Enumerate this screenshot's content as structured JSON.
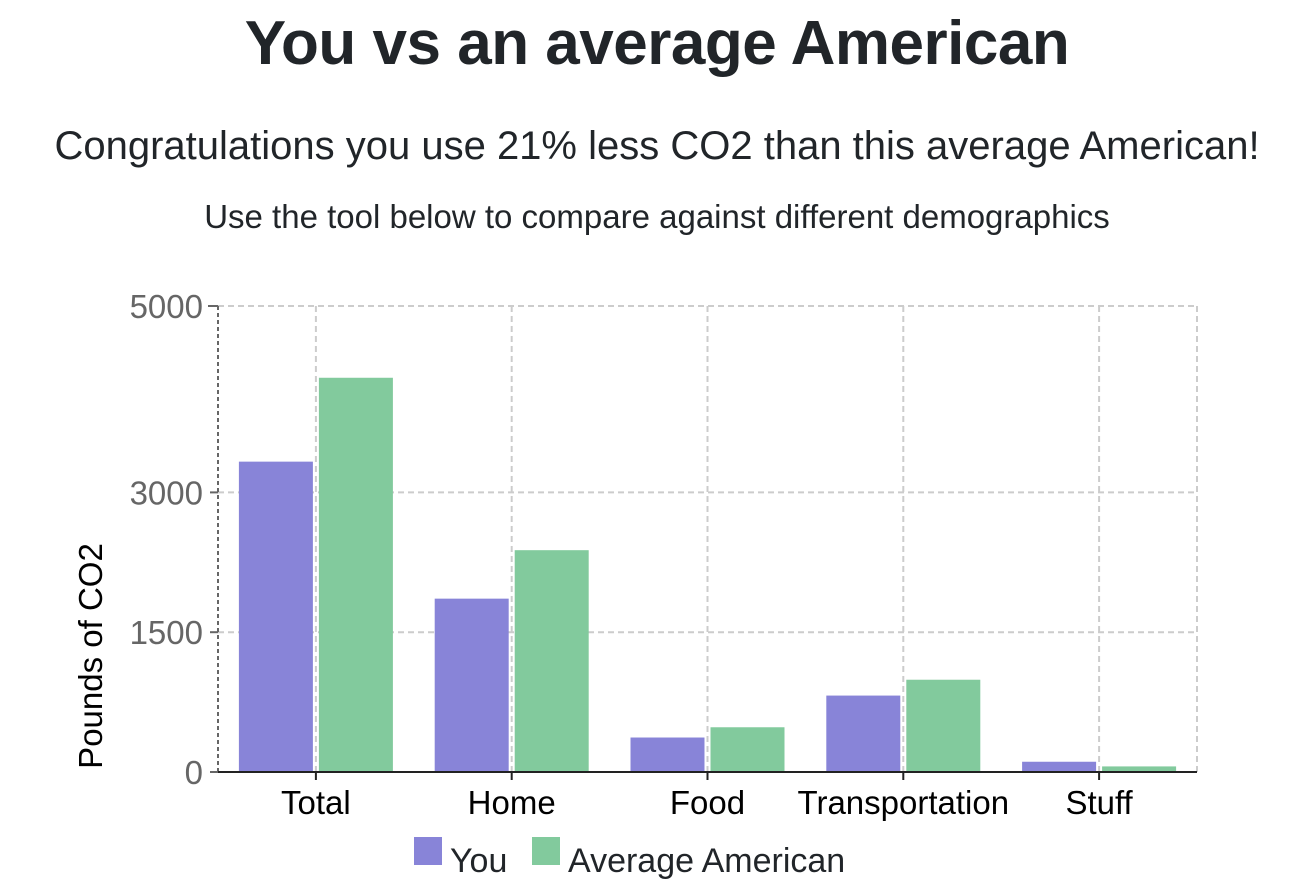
{
  "header": {
    "title": "You vs an average American",
    "message": "Congratulations you use 21% less CO2 than this average American!",
    "instruction": "Use the tool below to compare against different demographics"
  },
  "chart_data": {
    "type": "bar",
    "categories": [
      "Total",
      "Home",
      "Food",
      "Transportation",
      "Stuff"
    ],
    "series": [
      {
        "name": "You",
        "color": "#8884d8",
        "values": [
          3330,
          1860,
          370,
          820,
          110
        ]
      },
      {
        "name": "Average American",
        "color": "#82ca9d",
        "values": [
          4230,
          2380,
          480,
          990,
          60
        ]
      }
    ],
    "ylabel": "Pounds of CO2",
    "yticks": [
      0,
      1500,
      3000,
      5000
    ],
    "ylim": [
      0,
      5000
    ],
    "grid": true,
    "legend": "bottom"
  }
}
